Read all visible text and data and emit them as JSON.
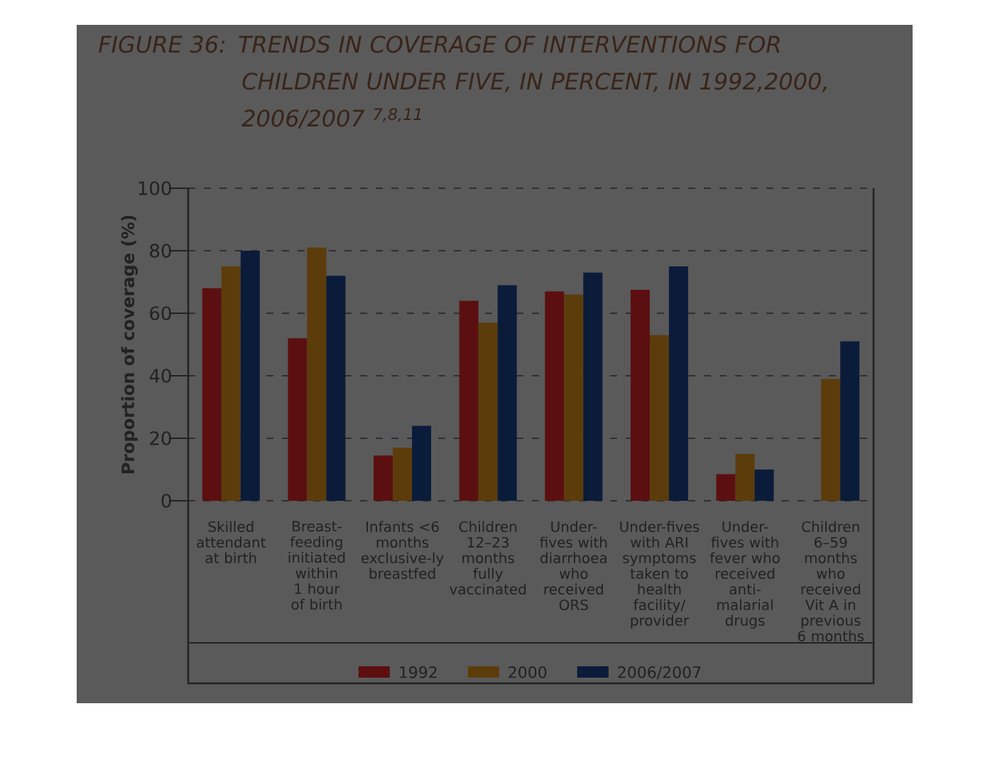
{
  "chart_data": {
    "type": "bar",
    "title": "FIGURE 36: TRENDS IN COVERAGE OF INTERVENTIONS FOR CHILDREN UNDER FIVE, IN PERCENT, IN 1992,2000, 2006/2007 $^{7,8,11}$",
    "ylabel": "Proportion of coverage (%)",
    "categories": [
      "Skilled attendant at birth",
      "Breast-feeding initiated within 1 hour of birth",
      "Infants <6 months exclusive-ly breastfed",
      "Children 12–23 months fully vaccinated",
      "Under-fives with diarrhoea who received ORS",
      "Under-fives with ARI symptoms taken to health facility/ provider",
      "Under-fives with fever who received anti-malarial drugs",
      "Children 6–59 months who received Vit A in previous 6 months"
    ],
    "series": [
      {
        "name": "1992",
        "color": "#5c0f10",
        "values": [
          68,
          52,
          14.5,
          64,
          67,
          67.5,
          8.5,
          null
        ]
      },
      {
        "name": "2000",
        "color": "#5c3c0a",
        "values": [
          75,
          81,
          17,
          57,
          66,
          53,
          15,
          39
        ]
      },
      {
        "name": "2006/2007",
        "color": "#0b1b3a",
        "values": [
          80,
          72,
          24,
          69,
          73,
          75,
          10,
          51
        ]
      }
    ],
    "ylim": [
      0,
      100
    ],
    "yticks": [
      0,
      20,
      40,
      60,
      80,
      100
    ],
    "grid": "y",
    "legend": "bottom"
  }
}
